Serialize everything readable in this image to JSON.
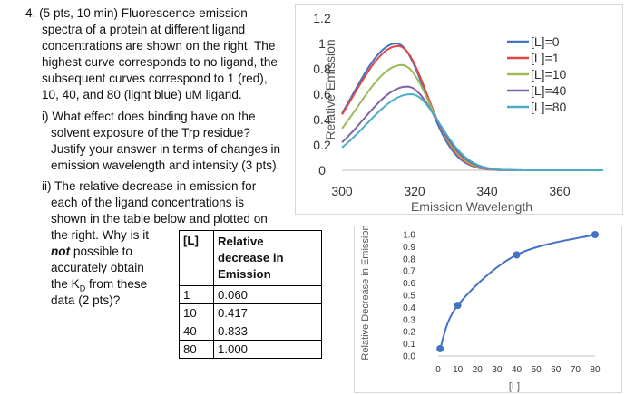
{
  "question": {
    "header": "4. (5 pts, 10 min) Fluorescence emission",
    "intro_lines": [
      "spectra of a protein at different ligand",
      "concentrations are shown on the right. The",
      "highest curve corresponds to no ligand, the",
      "subsequent curves correspond to 1 (red),",
      "10, 40, and 80 (light blue) uM ligand."
    ],
    "part_i_lines": [
      "i) What effect does binding have on the",
      "solvent exposure of the Trp residue?",
      "Justify your answer in terms of changes in",
      "emission wavelength and intensity (3 pts)."
    ],
    "part_ii_lines": [
      "ii) The relative decrease in emission for",
      "each of the ligand concentrations is",
      "shown in the table below and plotted on"
    ],
    "part_ii_tail": {
      "l1": "the right.  Why is it",
      "not_word": "not",
      "l2_rest": " possible to",
      "l3": "accurately obtain",
      "l4_pre": "the K",
      "l4_sub": "D",
      "l4_post": " from these",
      "l5": "data (2 pts)?"
    }
  },
  "table": {
    "col1_header": "[L]",
    "col2_header": "Relative decrease in Emission",
    "rows": [
      {
        "l": "1",
        "v": "0.060"
      },
      {
        "l": "10",
        "v": "0.417"
      },
      {
        "l": "40",
        "v": "0.833"
      },
      {
        "l": "80",
        "v": "1.000"
      }
    ]
  },
  "chart_data": [
    {
      "type": "line",
      "xlabel": "Emission Wavelength",
      "ylabel": "Relative Emission",
      "xlim": [
        300,
        372
      ],
      "ylim": [
        0,
        1.2
      ],
      "xticks": [
        "300",
        "320",
        "340",
        "360"
      ],
      "yticks": [
        "0",
        "0.2",
        "0.4",
        "0.6",
        "0.8",
        "1",
        "1.2"
      ],
      "legend_position": "right",
      "grid": false,
      "series": [
        {
          "name": "[L]=0",
          "color": "#4472C4",
          "peak_x": 315,
          "peak_y": 1.0,
          "start_y": 0.45
        },
        {
          "name": "[L]=1",
          "color": "#E64545",
          "peak_x": 315.5,
          "peak_y": 0.98,
          "start_y": 0.44
        },
        {
          "name": "[L]=10",
          "color": "#9BBB59",
          "peak_x": 316.5,
          "peak_y": 0.83,
          "start_y": 0.33
        },
        {
          "name": "[L]=40",
          "color": "#8064A2",
          "peak_x": 318,
          "peak_y": 0.66,
          "start_y": 0.22
        },
        {
          "name": "[L]=80",
          "color": "#4BACC6",
          "peak_x": 319,
          "peak_y": 0.6,
          "start_y": 0.18
        }
      ]
    },
    {
      "type": "scatter",
      "xlabel": "[L]",
      "ylabel": "Relative Decrease in Emission",
      "xlim": [
        0,
        80
      ],
      "ylim": [
        0,
        1.0
      ],
      "xticks": [
        "0",
        "10",
        "20",
        "30",
        "40",
        "50",
        "60",
        "70",
        "80"
      ],
      "yticks": [
        "0.0",
        "0.1",
        "0.2",
        "0.3",
        "0.4",
        "0.5",
        "0.6",
        "0.7",
        "0.8",
        "0.9",
        "1.0"
      ],
      "grid": false,
      "marker_color": "#4472C4",
      "x": [
        1,
        10,
        40,
        80
      ],
      "y": [
        0.06,
        0.417,
        0.833,
        1.0
      ]
    }
  ]
}
